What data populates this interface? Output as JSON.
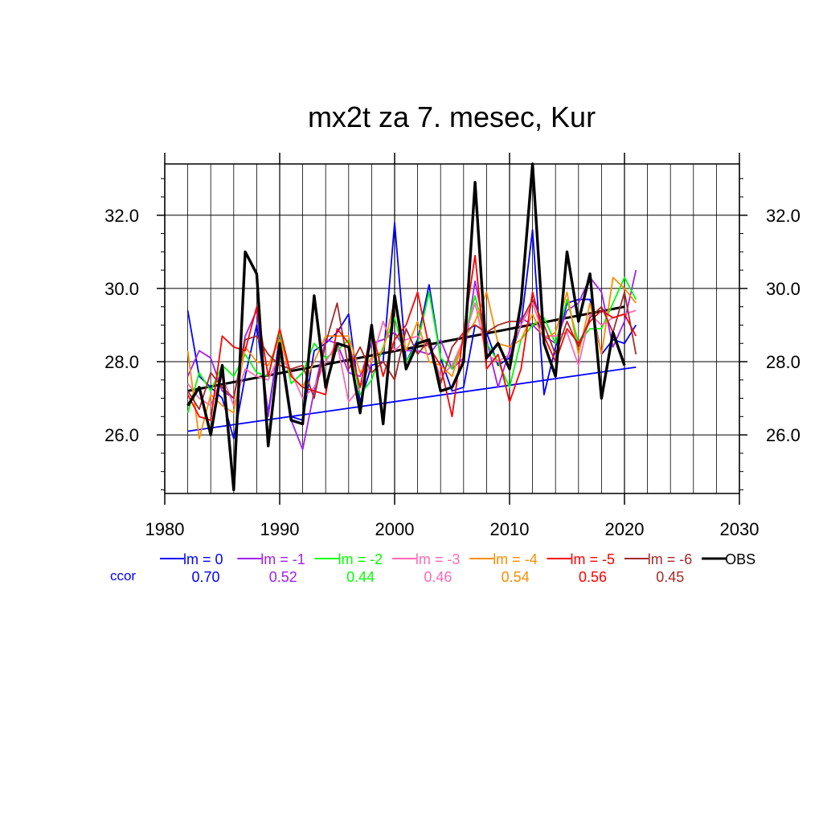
{
  "chart_data": {
    "type": "line",
    "title": "mx2t za 7. mesec, Kur",
    "xlim": [
      1980,
      2030
    ],
    "ylim": [
      24.4,
      33.4
    ],
    "x_ticks": [
      1980,
      1990,
      2000,
      2010,
      2020,
      2030
    ],
    "x_tick_labels": [
      "1980",
      "1990",
      "2000",
      "2010",
      "2020",
      "2030"
    ],
    "y_ticks": [
      26,
      28,
      30,
      32
    ],
    "y_tick_labels": [
      "26.0",
      "28.0",
      "30.0",
      "32.0"
    ],
    "grid": true,
    "legend_position": "bottom",
    "ccor_label": "ccor",
    "years": [
      1982,
      1983,
      1984,
      1985,
      1986,
      1987,
      1988,
      1989,
      1990,
      1991,
      1992,
      1993,
      1994,
      1995,
      1996,
      1997,
      1998,
      1999,
      2000,
      2001,
      2002,
      2003,
      2004,
      2005,
      2006,
      2007,
      2008,
      2009,
      2010,
      2011,
      2012,
      2013,
      2014,
      2015,
      2016,
      2017,
      2018,
      2019,
      2020,
      2021
    ],
    "series": [
      {
        "name": "lm = 0",
        "color": "#0000ff",
        "ccor": "0.70",
        "values": [
          29.4,
          27.6,
          27.3,
          27.0,
          25.9,
          27.6,
          29.0,
          26.6,
          28.7,
          26.5,
          26.4,
          28.3,
          28.5,
          28.8,
          29.3,
          26.9,
          27.9,
          28.0,
          31.8,
          28.0,
          28.6,
          30.1,
          28.1,
          27.2,
          27.3,
          29.0,
          28.8,
          27.9,
          28.1,
          29.0,
          31.6,
          27.1,
          28.4,
          29.6,
          29.7,
          29.7,
          28.2,
          28.6,
          28.5,
          29.0
        ]
      },
      {
        "name": "lm = -1",
        "color": "#a020f0",
        "ccor": "0.52",
        "values": [
          27.6,
          28.3,
          28.1,
          27.2,
          27.0,
          28.7,
          29.4,
          26.5,
          28.7,
          26.4,
          25.6,
          27.2,
          28.6,
          28.5,
          27.7,
          27.6,
          28.5,
          28.6,
          28.8,
          28.3,
          28.3,
          28.2,
          28.6,
          27.8,
          28.1,
          30.2,
          28.6,
          27.3,
          28.3,
          29.2,
          29.0,
          28.7,
          28.5,
          29.4,
          29.6,
          30.3,
          29.9,
          28.4,
          29.1,
          30.5
        ]
      },
      {
        "name": "lm = -2",
        "color": "#00ff00",
        "ccor": "0.44",
        "values": [
          26.6,
          27.7,
          27.2,
          27.9,
          27.6,
          28.2,
          27.7,
          27.6,
          28.8,
          27.4,
          27.7,
          28.5,
          28.1,
          28.3,
          28.6,
          27.1,
          27.5,
          28.4,
          29.2,
          28.0,
          28.5,
          29.9,
          28.1,
          27.8,
          28.6,
          29.8,
          28.5,
          28.0,
          27.3,
          28.6,
          29.0,
          29.2,
          28.5,
          29.7,
          28.5,
          28.9,
          28.9,
          29.6,
          30.3,
          29.7
        ]
      },
      {
        "name": "lm = -3",
        "color": "#ff69b4",
        "ccor": "0.46",
        "values": [
          27.4,
          27.0,
          26.8,
          27.6,
          26.8,
          27.8,
          27.6,
          27.5,
          28.2,
          27.7,
          27.0,
          27.3,
          28.0,
          28.5,
          26.9,
          27.3,
          28.0,
          29.1,
          28.3,
          28.6,
          28.7,
          28.4,
          27.6,
          27.9,
          28.6,
          29.6,
          28.2,
          28.0,
          28.2,
          29.0,
          29.6,
          28.7,
          28.7,
          28.8,
          27.9,
          29.3,
          29.0,
          29.2,
          29.3,
          29.4
        ]
      },
      {
        "name": "lm = -4",
        "color": "#ff8c00",
        "ccor": "0.54",
        "values": [
          28.3,
          25.9,
          27.1,
          26.8,
          26.6,
          28.4,
          28.0,
          27.9,
          28.6,
          27.6,
          27.3,
          28.0,
          28.7,
          28.7,
          28.7,
          27.7,
          28.1,
          28.3,
          29.7,
          28.3,
          29.1,
          28.0,
          27.9,
          27.6,
          28.6,
          29.1,
          29.9,
          28.5,
          28.4,
          28.6,
          29.3,
          28.6,
          28.8,
          29.9,
          28.2,
          29.6,
          28.2,
          30.3,
          30.0,
          29.6
        ]
      },
      {
        "name": "lm = -5",
        "color": "#ff0000",
        "ccor": "0.56",
        "values": [
          27.1,
          26.5,
          26.4,
          28.7,
          28.4,
          28.3,
          29.5,
          27.6,
          28.9,
          27.6,
          27.3,
          27.2,
          27.1,
          28.9,
          28.5,
          27.3,
          28.9,
          27.6,
          28.6,
          29.0,
          29.9,
          28.4,
          27.9,
          26.5,
          28.8,
          30.9,
          27.8,
          28.2,
          26.9,
          27.8,
          29.9,
          28.7,
          28.0,
          28.9,
          28.5,
          29.1,
          29.4,
          29.2,
          29.3,
          28.7
        ]
      },
      {
        "name": "lm = -6",
        "color": "#a52a2a",
        "ccor": "0.45",
        "values": [
          27.2,
          26.7,
          27.7,
          27.3,
          27.0,
          28.6,
          28.7,
          28.2,
          27.9,
          27.8,
          27.9,
          27.0,
          28.5,
          29.6,
          27.8,
          28.4,
          27.7,
          28.0,
          27.5,
          28.9,
          28.2,
          28.6,
          27.4,
          28.4,
          28.8,
          29.0,
          28.8,
          29.0,
          29.1,
          29.1,
          29.7,
          29.0,
          28.2,
          29.1,
          28.4,
          29.2,
          29.5,
          28.8,
          29.9,
          28.2
        ]
      },
      {
        "name": "OBS",
        "color": "#000000",
        "ccor": "",
        "values": [
          26.8,
          27.3,
          26.0,
          27.9,
          24.5,
          31.0,
          30.4,
          25.7,
          28.5,
          26.4,
          26.3,
          29.8,
          27.3,
          28.5,
          28.4,
          26.6,
          29.0,
          26.3,
          29.8,
          27.8,
          28.5,
          28.6,
          27.2,
          27.3,
          28.0,
          32.9,
          28.1,
          28.5,
          27.8,
          29.6,
          33.4,
          28.5,
          27.6,
          31.0,
          29.1,
          30.4,
          27.0,
          28.8,
          27.9
        ]
      }
    ],
    "obs_trend": {
      "color": "#000000",
      "x": [
        1982,
        2020
      ],
      "y": [
        27.2,
        29.5
      ]
    },
    "model_trend": {
      "color": "#0000ff",
      "x": [
        1982,
        2021
      ],
      "y": [
        26.1,
        27.85
      ]
    }
  }
}
